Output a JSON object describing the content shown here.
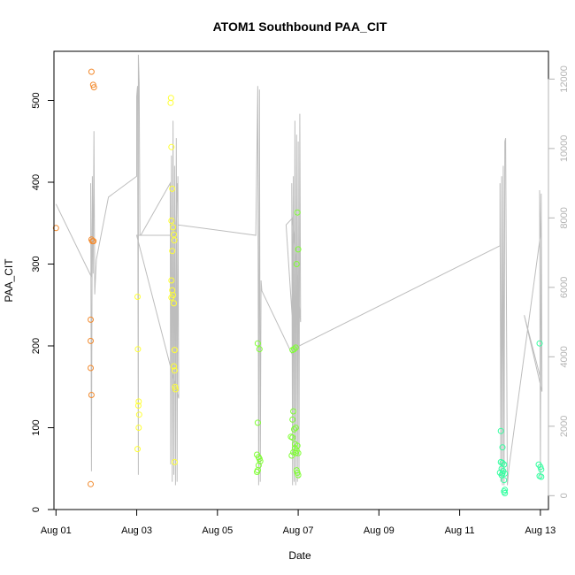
{
  "chart_data": {
    "type": "scatter",
    "title": "ATOM1 Southbound PAA_CIT",
    "xlabel": "Date",
    "ylabel": "PAA_CIT",
    "xlim": [
      -0.05,
      12.2
    ],
    "ylim": [
      0,
      560
    ],
    "y2lim": [
      -400,
      12800
    ],
    "x_tick_values": [
      0,
      2,
      4,
      6,
      8,
      10,
      12
    ],
    "x_tick_labels": [
      "Aug 01",
      "Aug 03",
      "Aug 05",
      "Aug 07",
      "Aug 09",
      "Aug 11",
      "Aug 13"
    ],
    "y_ticks": [
      0,
      100,
      200,
      300,
      400,
      500
    ],
    "y2_ticks": [
      0,
      2000,
      4000,
      6000,
      8000,
      10000,
      12000
    ],
    "grid": false,
    "legend": "none",
    "points_color_scale": [
      "#f28a2e",
      "#ffff33",
      "#7fff33",
      "#33ffa0"
    ],
    "series": [
      {
        "values": [
          [
            0.0,
            344
          ],
          [
            0.88,
            535
          ],
          [
            0.92,
            519
          ],
          [
            0.94,
            516
          ],
          [
            0.88,
            330
          ],
          [
            0.9,
            328
          ],
          [
            0.93,
            328
          ],
          [
            0.86,
            232
          ],
          [
            0.86,
            206
          ],
          [
            0.86,
            173
          ],
          [
            0.88,
            140
          ],
          [
            0.86,
            31
          ]
        ]
      },
      {
        "values": [
          [
            2.02,
            260
          ],
          [
            2.03,
            196
          ],
          [
            2.05,
            132
          ],
          [
            2.04,
            127
          ],
          [
            2.06,
            116
          ],
          [
            2.05,
            100
          ],
          [
            2.02,
            74
          ],
          [
            2.85,
            503
          ],
          [
            2.84,
            497
          ],
          [
            2.86,
            443
          ],
          [
            2.88,
            392
          ],
          [
            2.86,
            353
          ],
          [
            2.9,
            345
          ],
          [
            2.92,
            336
          ],
          [
            2.93,
            329
          ],
          [
            2.88,
            316
          ],
          [
            2.86,
            280
          ],
          [
            2.88,
            268
          ],
          [
            2.9,
            262
          ],
          [
            2.86,
            259
          ],
          [
            2.92,
            252
          ],
          [
            2.94,
            195
          ],
          [
            2.92,
            175
          ],
          [
            2.94,
            170
          ],
          [
            2.95,
            150
          ],
          [
            2.96,
            147
          ],
          [
            2.94,
            58
          ]
        ]
      },
      {
        "values": [
          [
            5.0,
            203
          ],
          [
            5.04,
            196
          ],
          [
            5.0,
            106
          ],
          [
            4.98,
            67
          ],
          [
            5.02,
            64
          ],
          [
            5.04,
            62
          ],
          [
            5.06,
            59
          ],
          [
            5.02,
            54
          ],
          [
            5.0,
            48
          ],
          [
            4.98,
            46
          ],
          [
            5.98,
            363
          ],
          [
            6.0,
            318
          ],
          [
            5.96,
            300
          ],
          [
            5.94,
            198
          ],
          [
            5.9,
            196
          ],
          [
            5.86,
            195
          ],
          [
            5.88,
            120
          ],
          [
            5.86,
            110
          ],
          [
            5.9,
            98
          ],
          [
            5.94,
            100
          ],
          [
            5.82,
            89
          ],
          [
            5.86,
            88
          ],
          [
            5.92,
            80
          ],
          [
            5.98,
            78
          ],
          [
            5.92,
            75
          ],
          [
            5.88,
            70
          ],
          [
            5.84,
            66
          ],
          [
            5.96,
            72
          ],
          [
            5.94,
            69
          ],
          [
            6.0,
            69
          ],
          [
            5.96,
            48
          ],
          [
            5.98,
            45
          ],
          [
            6.0,
            42
          ]
        ]
      },
      {
        "values": [
          [
            11.02,
            96
          ],
          [
            11.06,
            76
          ],
          [
            11.02,
            58
          ],
          [
            11.06,
            57
          ],
          [
            11.1,
            55
          ],
          [
            11.04,
            50
          ],
          [
            11.08,
            47
          ],
          [
            11.0,
            45
          ],
          [
            11.06,
            44
          ],
          [
            11.12,
            44
          ],
          [
            11.04,
            42
          ],
          [
            11.1,
            36
          ],
          [
            11.12,
            24
          ],
          [
            11.1,
            22
          ],
          [
            11.12,
            20
          ],
          [
            11.98,
            203
          ],
          [
            11.96,
            55
          ],
          [
            12.0,
            52
          ],
          [
            12.02,
            49
          ],
          [
            11.98,
            41
          ],
          [
            12.02,
            40
          ]
        ]
      }
    ],
    "secondary_line": {
      "values": [
        [
          0.0,
          8400
        ],
        [
          0.88,
          6300
        ],
        [
          0.86,
          9000
        ],
        [
          0.88,
          700
        ],
        [
          0.9,
          9200
        ],
        [
          0.92,
          6400
        ],
        [
          0.94,
          10500
        ],
        [
          0.96,
          5800
        ],
        [
          1.0,
          6800
        ],
        [
          1.3,
          8600
        ],
        [
          2.0,
          9200
        ],
        [
          2.0,
          11500
        ],
        [
          2.02,
          11800
        ],
        [
          2.04,
          600
        ],
        [
          2.04,
          12700
        ],
        [
          2.06,
          11900
        ],
        [
          2.08,
          7500
        ],
        [
          2.1,
          7500
        ],
        [
          2.83,
          9000
        ],
        [
          2.84,
          900
        ],
        [
          2.86,
          9800
        ],
        [
          2.88,
          400
        ],
        [
          2.9,
          10800
        ],
        [
          2.92,
          600
        ],
        [
          2.94,
          9500
        ],
        [
          2.96,
          300
        ],
        [
          2.98,
          10300
        ],
        [
          3.0,
          400
        ],
        [
          3.02,
          9200
        ],
        [
          3.04,
          2800
        ],
        [
          2.0,
          7500
        ],
        [
          2.96,
          7500
        ],
        [
          3.0,
          9000
        ],
        [
          3.02,
          7800
        ],
        [
          4.95,
          7500
        ],
        [
          5.0,
          11800
        ],
        [
          5.02,
          300
        ],
        [
          5.04,
          11700
        ],
        [
          5.06,
          400
        ],
        [
          5.08,
          6200
        ],
        [
          5.1,
          5900
        ],
        [
          5.88,
          4000
        ],
        [
          5.84,
          9000
        ],
        [
          5.86,
          300
        ],
        [
          5.88,
          9200
        ],
        [
          5.9,
          400
        ],
        [
          5.92,
          10800
        ],
        [
          5.94,
          300
        ],
        [
          5.96,
          10400
        ],
        [
          5.98,
          400
        ],
        [
          6.0,
          10200
        ],
        [
          6.02,
          500
        ],
        [
          6.04,
          11000
        ],
        [
          6.06,
          5000
        ],
        [
          5.86,
          8000
        ],
        [
          5.7,
          7800
        ],
        [
          5.9,
          4300
        ],
        [
          6.0,
          4300
        ],
        [
          11.0,
          7200
        ],
        [
          11.0,
          9000
        ],
        [
          11.02,
          400
        ],
        [
          11.04,
          9200
        ],
        [
          11.06,
          300
        ],
        [
          11.08,
          9500
        ],
        [
          11.1,
          300
        ],
        [
          11.12,
          10200
        ],
        [
          11.14,
          10300
        ],
        [
          11.18,
          300
        ],
        [
          11.22,
          800
        ],
        [
          12.0,
          7500
        ],
        [
          11.98,
          8800
        ],
        [
          12.0,
          500
        ],
        [
          12.02,
          8700
        ],
        [
          12.04,
          3000
        ],
        [
          11.6,
          5200
        ],
        [
          12.0,
          3400
        ]
      ]
    }
  }
}
